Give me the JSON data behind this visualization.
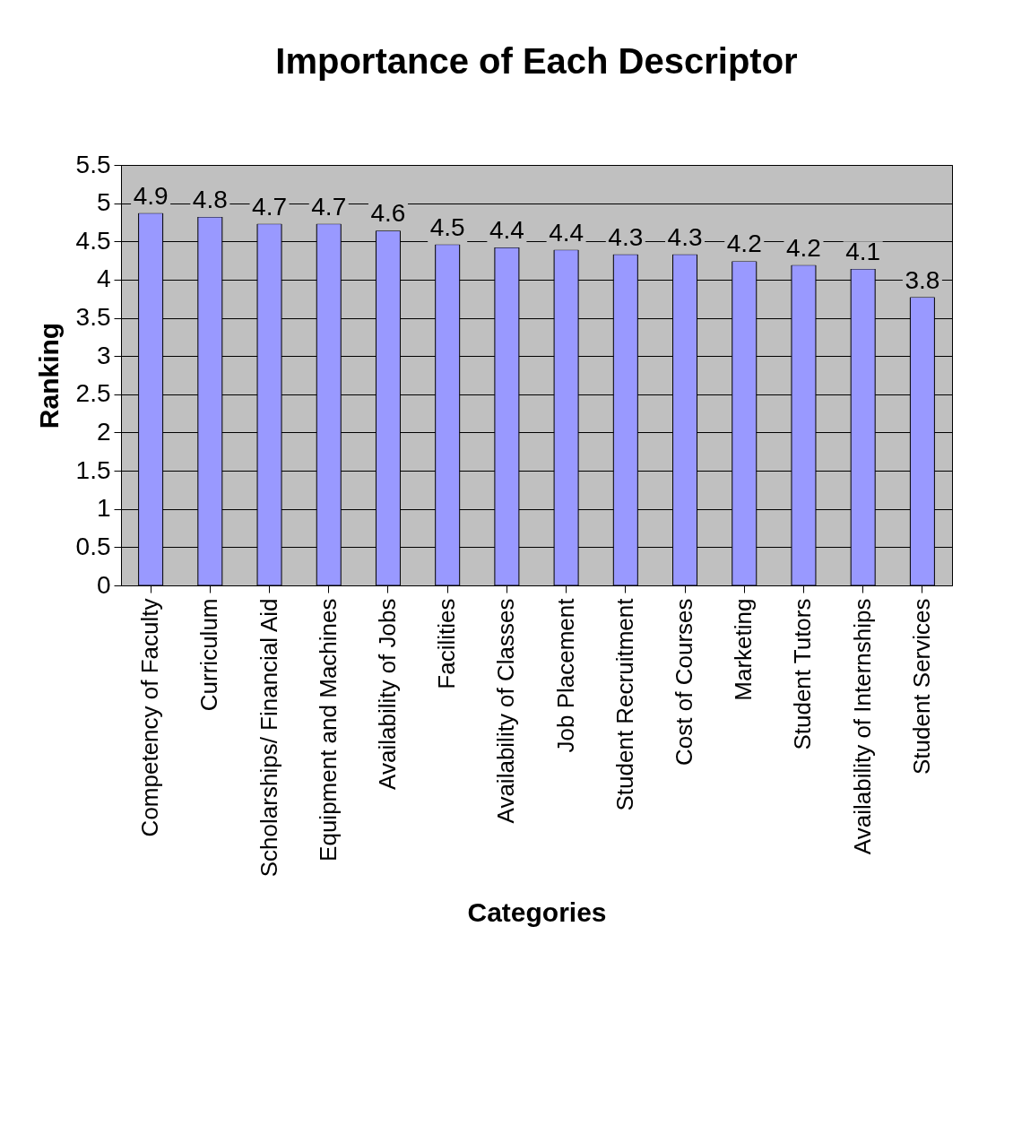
{
  "chart_data": {
    "type": "bar",
    "title": "Importance of Each Descriptor",
    "xlabel": "Categories",
    "ylabel": "Ranking",
    "categories": [
      "Competency of Faculty",
      "Curriculum",
      "Scholarships/ Financial Aid",
      "Equipment and Machines",
      "Availability of Jobs",
      "Facilities",
      "Availability of Classes",
      "Job Placement",
      "Student Recruitment",
      "Cost of Courses",
      "Marketing",
      "Student Tutors",
      "Availability of Internships",
      "Student Services"
    ],
    "values": [
      4.87,
      4.82,
      4.73,
      4.73,
      4.64,
      4.46,
      4.42,
      4.39,
      4.33,
      4.33,
      4.24,
      4.19,
      4.14,
      3.77
    ],
    "value_labels": [
      "4.9",
      "4.8",
      "4.7",
      "4.7",
      "4.6",
      "4.5",
      "4.4",
      "4.4",
      "4.3",
      "4.3",
      "4.2",
      "4.2",
      "4.1",
      "3.8"
    ],
    "color": "#9999ff",
    "ylim": [
      0,
      5.5
    ],
    "yticks": [
      0,
      0.5,
      1,
      1.5,
      2,
      2.5,
      3,
      3.5,
      4,
      4.5,
      5,
      5.5
    ],
    "grid": "y",
    "legend": false
  }
}
